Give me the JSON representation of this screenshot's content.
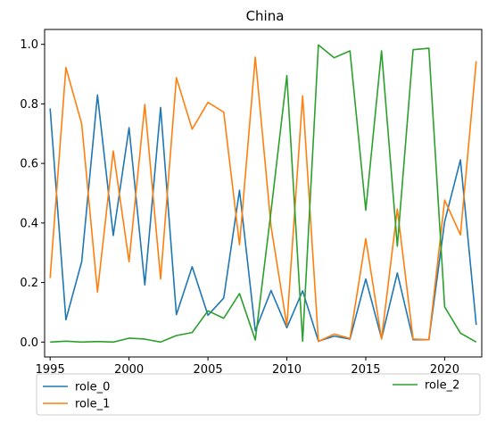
{
  "chart_data": {
    "type": "line",
    "title": "China",
    "xlabel": "",
    "ylabel": "",
    "xlim": [
      1994.65,
      2022.35
    ],
    "ylim": [
      -0.05,
      1.05
    ],
    "x_ticks": [
      1995,
      2000,
      2005,
      2010,
      2015,
      2020
    ],
    "y_ticks": [
      0.0,
      0.2,
      0.4,
      0.6,
      0.8,
      1.0
    ],
    "x_tick_labels": [
      "1995",
      "2000",
      "2005",
      "2010",
      "2015",
      "2020"
    ],
    "y_tick_labels": [
      "0.0",
      "0.2",
      "0.4",
      "0.6",
      "0.8",
      "1.0"
    ],
    "grid": false,
    "legend_position": "below-plot",
    "x": [
      1995,
      1996,
      1997,
      1998,
      1999,
      2000,
      2001,
      2002,
      2003,
      2004,
      2005,
      2006,
      2007,
      2008,
      2009,
      2010,
      2011,
      2012,
      2013,
      2014,
      2015,
      2016,
      2017,
      2018,
      2019,
      2020,
      2021,
      2022
    ],
    "series": [
      {
        "name": "role_0",
        "color": "#1f77b4",
        "values": [
          0.785,
          0.075,
          0.27,
          0.83,
          0.358,
          0.72,
          0.192,
          0.788,
          0.092,
          0.253,
          0.09,
          0.148,
          0.51,
          0.038,
          0.173,
          0.048,
          0.172,
          0.003,
          0.02,
          0.01,
          0.212,
          0.012,
          0.232,
          0.008,
          0.008,
          0.405,
          0.612,
          0.058
        ]
      },
      {
        "name": "role_1",
        "color": "#ff7f0e",
        "values": [
          0.215,
          0.922,
          0.733,
          0.168,
          0.642,
          0.27,
          0.798,
          0.212,
          0.888,
          0.715,
          0.805,
          0.772,
          0.327,
          0.957,
          0.388,
          0.055,
          0.827,
          0.002,
          0.027,
          0.012,
          0.347,
          0.01,
          0.447,
          0.01,
          0.008,
          0.477,
          0.36,
          0.943
        ]
      },
      {
        "name": "role_2",
        "color": "#2ca02c",
        "values": [
          0.0,
          0.003,
          0.0,
          0.002,
          0.0,
          0.013,
          0.01,
          0.0,
          0.022,
          0.032,
          0.105,
          0.08,
          0.163,
          0.007,
          0.44,
          0.895,
          0.003,
          0.998,
          0.955,
          0.978,
          0.443,
          0.978,
          0.322,
          0.982,
          0.987,
          0.118,
          0.03,
          0.0
        ]
      }
    ]
  }
}
